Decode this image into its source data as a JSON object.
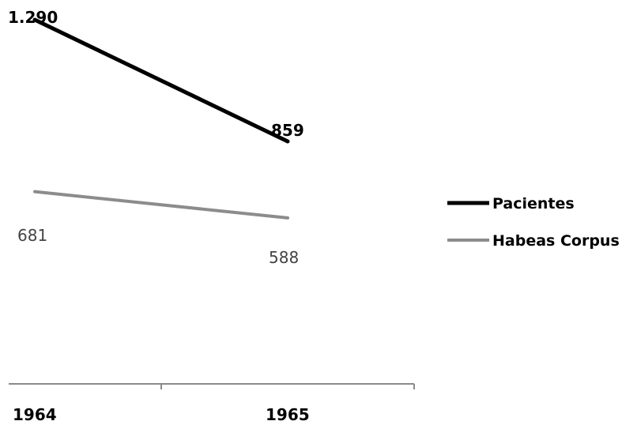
{
  "chart_data": {
    "type": "line",
    "x": [
      "1964",
      "1965"
    ],
    "series": [
      {
        "name": "Pacientes",
        "values": [
          1290,
          859
        ],
        "value_labels": [
          "1.290",
          "859"
        ],
        "color": "#000000",
        "label_weight": "bold"
      },
      {
        "name": "Habeas Corpus",
        "values": [
          681,
          588
        ],
        "value_labels": [
          "681",
          "588"
        ],
        "color": "#8c8c8c",
        "label_weight": "normal"
      }
    ],
    "title": "",
    "xlabel": "",
    "ylabel": "",
    "ylim": [
      0,
      1360
    ],
    "grid": false,
    "legend": "right"
  }
}
